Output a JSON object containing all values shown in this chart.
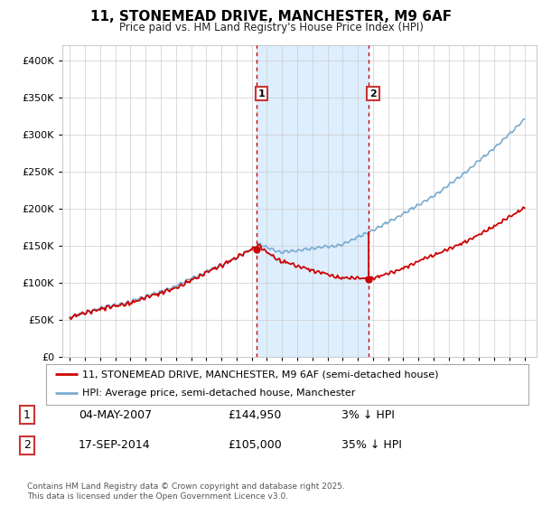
{
  "title": "11, STONEMEAD DRIVE, MANCHESTER, M9 6AF",
  "subtitle": "Price paid vs. HM Land Registry's House Price Index (HPI)",
  "ylim": [
    0,
    420000
  ],
  "xlim_start": 1994.5,
  "xlim_end": 2025.8,
  "sale1_x": 2007.34,
  "sale1_y": 144950,
  "sale1_label": "1",
  "sale2_x": 2014.71,
  "sale2_y": 105000,
  "sale2_label": "2",
  "legend_line1": "11, STONEMEAD DRIVE, MANCHESTER, M9 6AF (semi-detached house)",
  "legend_line2": "HPI: Average price, semi-detached house, Manchester",
  "table_row1": [
    "1",
    "04-MAY-2007",
    "£144,950",
    "3% ↓ HPI"
  ],
  "table_row2": [
    "2",
    "17-SEP-2014",
    "£105,000",
    "35% ↓ HPI"
  ],
  "footer": "Contains HM Land Registry data © Crown copyright and database right 2025.\nThis data is licensed under the Open Government Licence v3.0.",
  "red_color": "#cc0000",
  "blue_color": "#7aabcf",
  "shade_color": "#ddeeff",
  "marker_box_color": "#cc3333"
}
